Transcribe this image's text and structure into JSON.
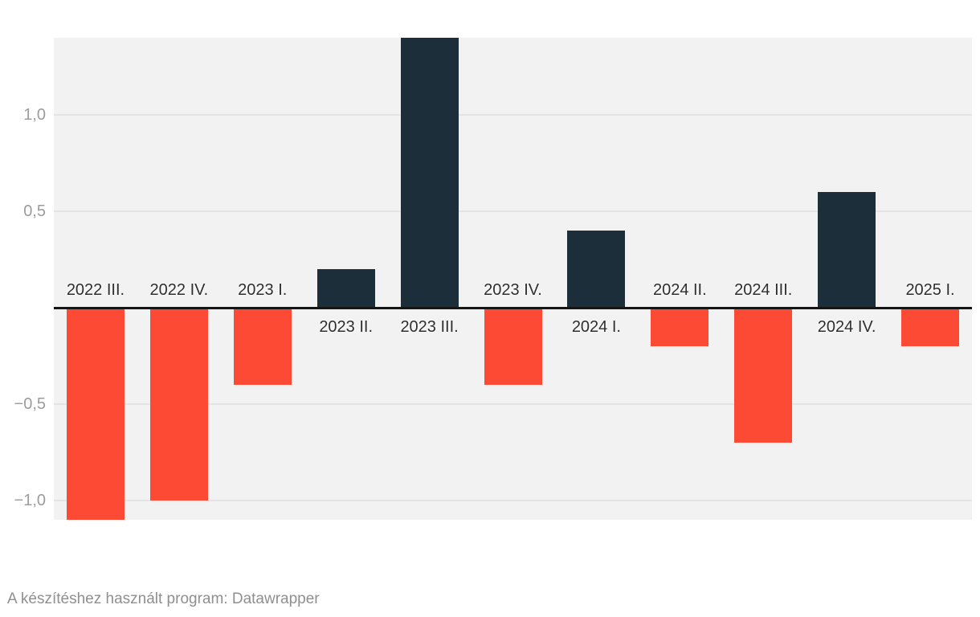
{
  "chart_data": {
    "type": "bar",
    "title": "",
    "xlabel": "",
    "ylabel": "",
    "categories": [
      "2022 III.",
      "2022 IV.",
      "2023 I.",
      "2023 II.",
      "2023 III.",
      "2023 IV.",
      "2024 I.",
      "2024 II.",
      "2024 III.",
      "2024 IV.",
      "2025 I."
    ],
    "values": [
      -1.1,
      -1.0,
      -0.4,
      0.2,
      1.4,
      -0.4,
      0.4,
      -0.2,
      -0.7,
      0.6,
      -0.2
    ],
    "ylim": [
      -1.1,
      1.4
    ],
    "y_ticks": [
      {
        "value": 1.0,
        "label": "1,0"
      },
      {
        "value": 0.5,
        "label": "0,5"
      },
      {
        "value": -0.5,
        "label": "−0,5"
      },
      {
        "value": -1.0,
        "label": "−1,0"
      }
    ],
    "grid": true,
    "zero_line": true,
    "legend_position": "none",
    "label_placement": "negative bars labeled above zero line, positive bars labeled below zero line",
    "colors": {
      "positive": "#1c2e39",
      "negative": "#fd4a35"
    }
  },
  "footer": {
    "credit": "A készítéshez használt program: Datawrapper"
  },
  "theme": {
    "page_bg": "#ffffff",
    "plot_bg": "#f2f2f2",
    "grid_color": "#e4e4e4",
    "zero_line_color": "#151515",
    "x_label_color": "#2e2e2e",
    "y_tick_color": "#9c9c9c",
    "footer_color": "#8f8f8f"
  }
}
